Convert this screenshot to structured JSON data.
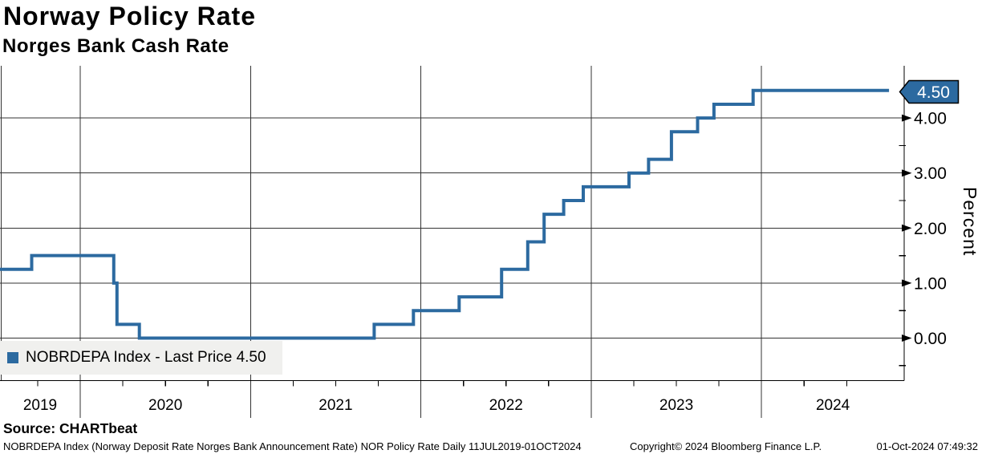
{
  "header": {
    "title": "Norway Policy Rate",
    "subtitle": "Norges Bank Cash Rate"
  },
  "chart_data": {
    "type": "line",
    "line_style": "step-after",
    "title": "Norway Policy Rate",
    "subtitle": "Norges Bank Cash Rate",
    "xlabel": "",
    "ylabel": "Percent",
    "series": [
      {
        "name": "NOBRDEPA Index",
        "color": "#2c6aa0",
        "points": [
          [
            "2019-07-11",
            1.25
          ],
          [
            "2019-09-19",
            1.5
          ],
          [
            "2020-03-13",
            1.0
          ],
          [
            "2020-03-20",
            0.25
          ],
          [
            "2020-05-07",
            0.0
          ],
          [
            "2021-09-23",
            0.25
          ],
          [
            "2021-12-16",
            0.5
          ],
          [
            "2022-03-24",
            0.75
          ],
          [
            "2022-06-23",
            1.25
          ],
          [
            "2022-08-18",
            1.75
          ],
          [
            "2022-09-22",
            2.25
          ],
          [
            "2022-11-03",
            2.5
          ],
          [
            "2022-12-15",
            2.75
          ],
          [
            "2023-03-23",
            3.0
          ],
          [
            "2023-05-04",
            3.25
          ],
          [
            "2023-06-22",
            3.75
          ],
          [
            "2023-08-17",
            4.0
          ],
          [
            "2023-09-21",
            4.25
          ],
          [
            "2023-12-14",
            4.5
          ],
          [
            "2024-10-01",
            4.5
          ]
        ]
      }
    ],
    "x_tick_years": [
      "2019",
      "2020",
      "2021",
      "2022",
      "2023",
      "2024"
    ],
    "y_major_ticks": [
      {
        "value": 0,
        "label": "0.00"
      },
      {
        "value": 1,
        "label": "1.00"
      },
      {
        "value": 2,
        "label": "2.00"
      },
      {
        "value": 3,
        "label": "3.00"
      },
      {
        "value": 4,
        "label": "4.00"
      }
    ],
    "y_minor_tick_values": [
      -0.5,
      0.5,
      1.5,
      2.5,
      3.5
    ],
    "ylim": [
      -0.77,
      4.95
    ],
    "x_range": [
      "2019-07-11",
      "2024-10-15"
    ],
    "grid": true,
    "last_price_flag": "4.50",
    "legend": {
      "label": "NOBRDEPA Index - Last Price 4.50",
      "position": "bottom-left"
    }
  },
  "source_line": "Source: CHARTbeat",
  "footer": {
    "description": "NOBRDEPA Index (Norway Deposit Rate Norges Bank Announcement Rate) NOR Policy Rate  Daily 11JUL2019-01OCT2024",
    "copyright": "Copyright© 2024 Bloomberg Finance L.P.",
    "timestamp": "01-Oct-2024 07:49:32"
  },
  "colors": {
    "line": "#2c6aa0",
    "flag_bg": "#2c6aa0",
    "flag_text": "#ffffff",
    "grid": "#333333",
    "axis": "#000000",
    "legend_bg": "#f0f0ee",
    "text": "#000000"
  }
}
